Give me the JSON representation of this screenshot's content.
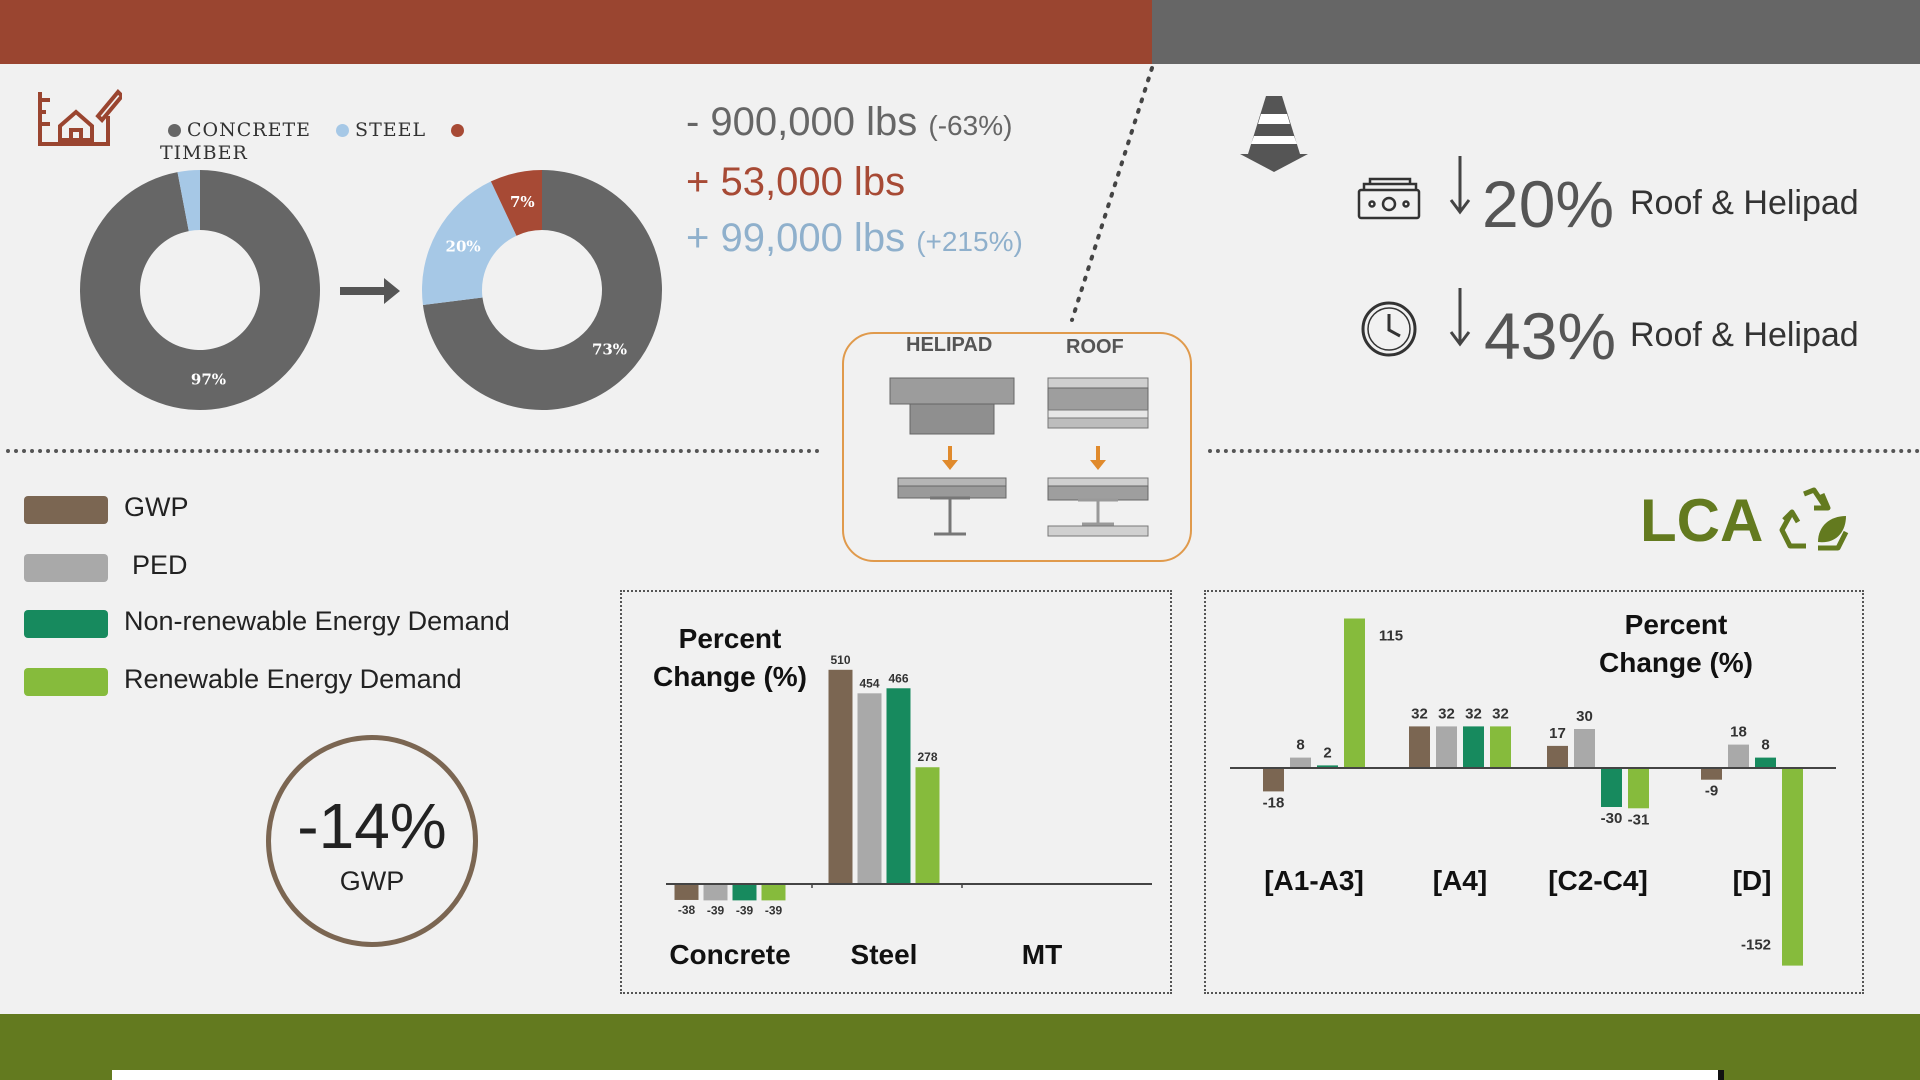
{
  "colors": {
    "concrete": "#666666",
    "steel": "#a6c8e6",
    "timber": "#a74a35",
    "gwp": "#7b6652",
    "ped": "#a9a9a9",
    "nonrenew": "#178a5e",
    "renew": "#86bb3c",
    "brand_red": "#9a4530",
    "brand_green": "#637a1f"
  },
  "legend_top": [
    {
      "label": "CONCRETE",
      "color": "#666666"
    },
    {
      "label": "STEEL",
      "color": "#a6c8e6"
    },
    {
      "label": "TIMBER",
      "color": "#a74a35"
    }
  ],
  "weights": {
    "concrete": {
      "value": "- 900,000 lbs",
      "pct": "(-63%)"
    },
    "steel": {
      "value": "+ 53,000 lbs"
    },
    "timber": {
      "value": "+ 99,000 lbs",
      "pct": "(+215%)"
    }
  },
  "stats": [
    {
      "icon": "money-icon",
      "value": "20%",
      "label": "Roof & Helipad"
    },
    {
      "icon": "clock-icon",
      "value": "43%",
      "label": "Roof & Helipad"
    }
  ],
  "detail": {
    "helipad": "HELIPAD",
    "roof": "ROOF"
  },
  "legend_left": [
    {
      "label": "GWP",
      "color": "#7b6652"
    },
    {
      "label": "PED",
      "color": "#a9a9a9"
    },
    {
      "label": "Non-renewable Energy Demand",
      "color": "#178a5e"
    },
    {
      "label": "Renewable Energy Demand",
      "color": "#86bb3c"
    }
  ],
  "gwp_summary": {
    "value": "-14%",
    "label": "GWP"
  },
  "lca": {
    "title": "LCA"
  },
  "chart_data": [
    {
      "type": "pie",
      "title": "",
      "categories": [
        "CONCRETE",
        "STEEL",
        "TIMBER"
      ],
      "values": [
        97,
        3,
        0
      ],
      "labels": [
        "97%",
        "",
        ""
      ],
      "donut": true
    },
    {
      "type": "pie",
      "title": "",
      "categories": [
        "CONCRETE",
        "STEEL",
        "TIMBER"
      ],
      "values": [
        73,
        20,
        7
      ],
      "labels": [
        "73%",
        "20%",
        "7%"
      ],
      "donut": true
    },
    {
      "type": "bar",
      "title": "Percent Change (%)",
      "categories": [
        "Concrete",
        "Steel",
        "MT"
      ],
      "series": [
        {
          "name": "GWP",
          "values": [
            -38,
            510,
            null
          ]
        },
        {
          "name": "PED",
          "values": [
            -39,
            454,
            null
          ]
        },
        {
          "name": "Non-renewable Energy Demand",
          "values": [
            -39,
            466,
            null
          ]
        },
        {
          "name": "Renewable Energy Demand",
          "values": [
            -39,
            278,
            null
          ]
        }
      ]
    },
    {
      "type": "bar",
      "title": "Percent Change (%)",
      "categories": [
        "[A1-A3]",
        "[A4]",
        "[C2-C4]",
        "[D]"
      ],
      "series": [
        {
          "name": "GWP",
          "values": [
            -18,
            32,
            17,
            -9
          ]
        },
        {
          "name": "PED",
          "values": [
            8,
            32,
            30,
            18
          ]
        },
        {
          "name": "Non-renewable Energy Demand",
          "values": [
            2,
            32,
            -30,
            8
          ]
        },
        {
          "name": "Renewable Energy Demand",
          "values": [
            115,
            32,
            -31,
            -152
          ]
        }
      ]
    }
  ]
}
